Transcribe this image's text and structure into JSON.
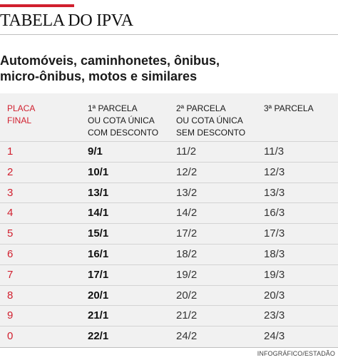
{
  "colors": {
    "accent": "#d11f2e",
    "panel": "#f1f1f1",
    "text": "#1a1a1a"
  },
  "title": "TABELA DO IPVA",
  "subtitle": {
    "line1": "Automóveis, caminhonetes, ônibus,",
    "line2": "micro-ônibus, motos e similares"
  },
  "table": {
    "headers": {
      "placa": [
        "PLACA",
        "FINAL"
      ],
      "parcela1": [
        "1ª PARCELA",
        "OU COTA ÚNICA",
        "COM DESCONTO"
      ],
      "parcela2": [
        "2ª PARCELA",
        "OU COTA ÚNICA",
        "SEM DESCONTO"
      ],
      "parcela3": [
        "3ª PARCELA"
      ]
    },
    "rows": [
      {
        "placa": "1",
        "p1": "9/1",
        "p2": "11/2",
        "p3": "11/3"
      },
      {
        "placa": "2",
        "p1": "10/1",
        "p2": "12/2",
        "p3": "12/3"
      },
      {
        "placa": "3",
        "p1": "13/1",
        "p2": "13/2",
        "p3": "13/3"
      },
      {
        "placa": "4",
        "p1": "14/1",
        "p2": "14/2",
        "p3": "16/3"
      },
      {
        "placa": "5",
        "p1": "15/1",
        "p2": "17/2",
        "p3": "17/3"
      },
      {
        "placa": "6",
        "p1": "16/1",
        "p2": "18/2",
        "p3": "18/3"
      },
      {
        "placa": "7",
        "p1": "17/1",
        "p2": "19/2",
        "p3": "19/3"
      },
      {
        "placa": "8",
        "p1": "20/1",
        "p2": "20/2",
        "p3": "20/3"
      },
      {
        "placa": "9",
        "p1": "21/1",
        "p2": "21/2",
        "p3": "23/3"
      },
      {
        "placa": "0",
        "p1": "22/1",
        "p2": "24/2",
        "p3": "24/3"
      }
    ]
  },
  "credit": "INFOGRÁFICO/ESTADÃO"
}
